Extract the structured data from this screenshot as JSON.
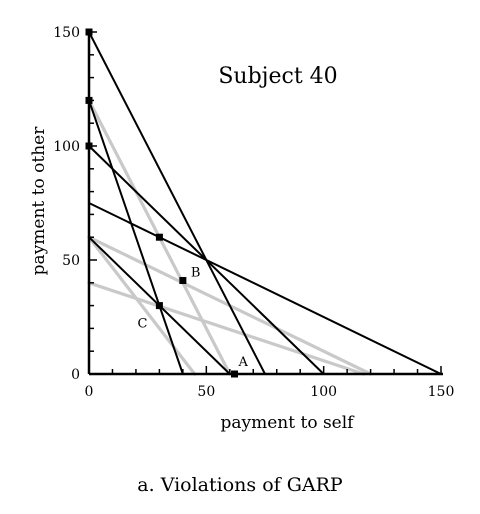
{
  "chart_data": {
    "type": "line",
    "title": "Subject 40",
    "xlabel": "payment to self",
    "ylabel": "payment to other",
    "caption": "a. Violations of GARP",
    "xlim": [
      0,
      150
    ],
    "ylim": [
      0,
      150
    ],
    "xticks": [
      0,
      50,
      100,
      150
    ],
    "yticks": [
      0,
      50,
      100,
      150
    ],
    "grid": false,
    "budget_lines_black": [
      {
        "name": "budget-1",
        "x": [
          0,
          40
        ],
        "y": [
          120,
          0
        ]
      },
      {
        "name": "budget-2",
        "x": [
          0,
          75
        ],
        "y": [
          150,
          0
        ]
      },
      {
        "name": "budget-3",
        "x": [
          0,
          100
        ],
        "y": [
          100,
          0
        ]
      },
      {
        "name": "budget-4",
        "x": [
          0,
          150
        ],
        "y": [
          75,
          0
        ]
      },
      {
        "name": "budget-5",
        "x": [
          0,
          60
        ],
        "y": [
          60,
          0
        ]
      }
    ],
    "budget_lines_gray": [
      {
        "name": "gray-1",
        "x": [
          0,
          60
        ],
        "y": [
          120,
          0
        ]
      },
      {
        "name": "gray-2",
        "x": [
          0,
          120
        ],
        "y": [
          60,
          0
        ]
      },
      {
        "name": "gray-3",
        "x": [
          0,
          117
        ],
        "y": [
          40,
          0
        ]
      },
      {
        "name": "gray-4",
        "x": [
          0,
          45
        ],
        "y": [
          60,
          0
        ]
      }
    ],
    "chosen_points": [
      {
        "x": 0,
        "y": 150,
        "label": ""
      },
      {
        "x": 0,
        "y": 120,
        "label": ""
      },
      {
        "x": 0,
        "y": 100,
        "label": ""
      },
      {
        "x": 30,
        "y": 60,
        "label": ""
      },
      {
        "x": 40,
        "y": 41,
        "label": "B"
      },
      {
        "x": 30,
        "y": 30,
        "label": "C"
      },
      {
        "x": 62,
        "y": 0,
        "label": "A"
      }
    ]
  }
}
